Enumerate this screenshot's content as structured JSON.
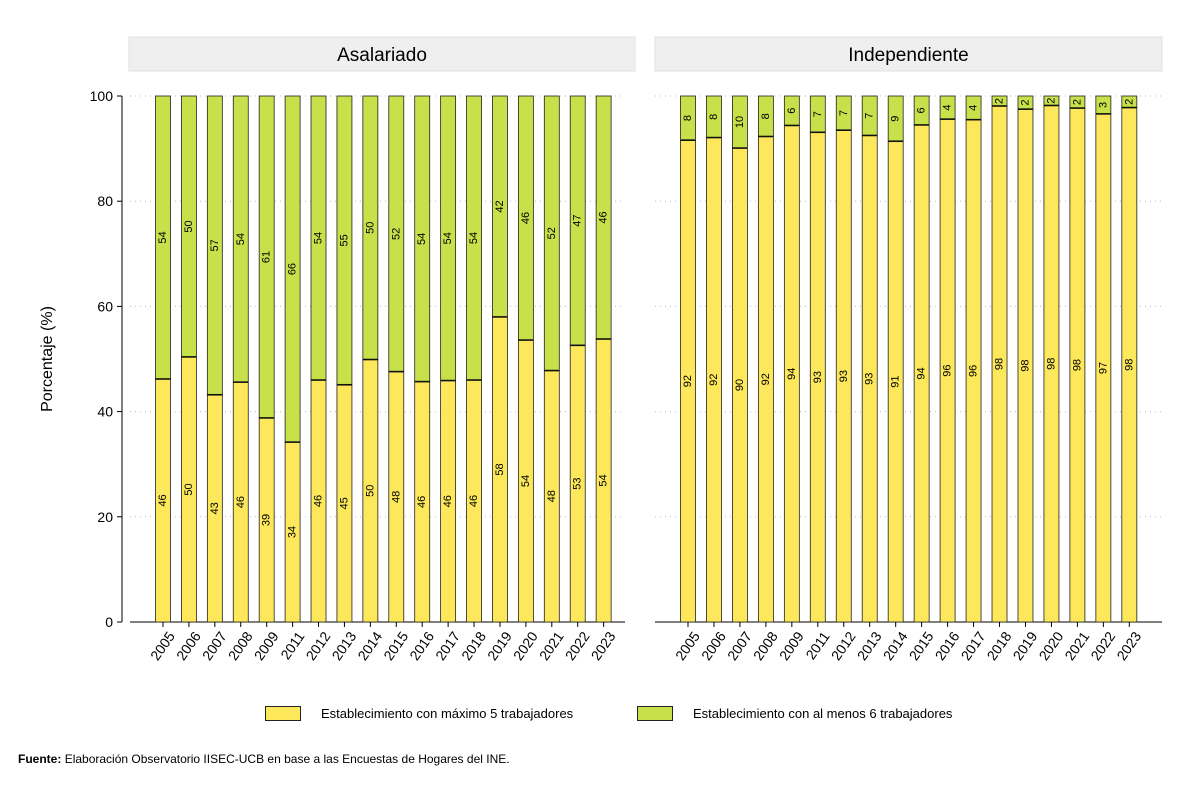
{
  "colors": {
    "small": "#FCE85A",
    "large": "#C8E04A",
    "panel_header_bg": "#EFEFEF",
    "grid": "#BDBDBD"
  },
  "legend": {
    "small_label": "Establecimiento con máximo 5 trabajadores",
    "large_label": "Establecimiento con al menos 6 trabajadores"
  },
  "footer": {
    "source_label": "Fuente:",
    "source_text": "Elaboración Observatorio IISEC-UCB en base a las Encuestas de Hogares del INE."
  },
  "chart_data": {
    "type": "bar",
    "stacked": true,
    "ylabel": "Porcentaje (%)",
    "ylim": [
      0,
      100
    ],
    "yticks": [
      0,
      20,
      40,
      60,
      80,
      100
    ],
    "grid": true,
    "legend_position": "bottom",
    "categories": [
      "2005",
      "2006",
      "2007",
      "2008",
      "2009",
      "2011",
      "2012",
      "2013",
      "2014",
      "2015",
      "2016",
      "2017",
      "2018",
      "2019",
      "2020",
      "2021",
      "2022",
      "2023"
    ],
    "panels": [
      {
        "title": "Asalariado",
        "series": [
          {
            "name": "Establecimiento con máximo 5 trabajadores",
            "values": [
              46.2,
              50.4,
              43.2,
              45.6,
              38.8,
              34.2,
              46.0,
              45.1,
              49.9,
              47.6,
              45.7,
              45.9,
              46.0,
              58.0,
              53.6,
              47.8,
              52.6,
              53.8
            ],
            "labels": [
              "46",
              "50",
              "43",
              "46",
              "39",
              "34",
              "46",
              "45",
              "50",
              "48",
              "46",
              "46",
              "46",
              "58",
              "54",
              "48",
              "53",
              "54"
            ]
          },
          {
            "name": "Establecimiento con al menos 6 trabajadores",
            "values": [
              53.8,
              49.6,
              56.8,
              54.4,
              61.2,
              65.8,
              54.0,
              54.9,
              50.1,
              52.4,
              54.3,
              54.1,
              54.0,
              42.0,
              46.4,
              52.2,
              47.4,
              46.2
            ],
            "labels": [
              "54",
              "50",
              "57",
              "54",
              "61",
              "66",
              "54",
              "55",
              "50",
              "52",
              "54",
              "54",
              "54",
              "42",
              "46",
              "52",
              "47",
              "46"
            ]
          }
        ]
      },
      {
        "title": "Independiente",
        "series": [
          {
            "name": "Establecimiento con máximo 5 trabajadores",
            "values": [
              91.6,
              92.1,
              90.1,
              92.3,
              94.4,
              93.1,
              93.5,
              92.5,
              91.4,
              94.5,
              95.6,
              95.5,
              98.1,
              97.5,
              98.2,
              97.7,
              96.6,
              97.8
            ],
            "labels": [
              "92",
              "92",
              "90",
              "92",
              "94",
              "93",
              "93",
              "93",
              "91",
              "94",
              "96",
              "96",
              "98",
              "98",
              "98",
              "98",
              "97",
              "98"
            ]
          },
          {
            "name": "Establecimiento con al menos 6 trabajadores",
            "values": [
              8.4,
              7.9,
              9.9,
              7.7,
              5.6,
              6.9,
              6.5,
              7.5,
              8.6,
              5.5,
              4.4,
              4.5,
              1.9,
              2.5,
              1.8,
              2.3,
              3.4,
              2.2
            ],
            "labels": [
              "8",
              "8",
              "10",
              "8",
              "6",
              "7",
              "7",
              "7",
              "9",
              "6",
              "4",
              "4",
              "2",
              "2",
              "2",
              "2",
              "3",
              "2"
            ]
          }
        ]
      }
    ]
  }
}
